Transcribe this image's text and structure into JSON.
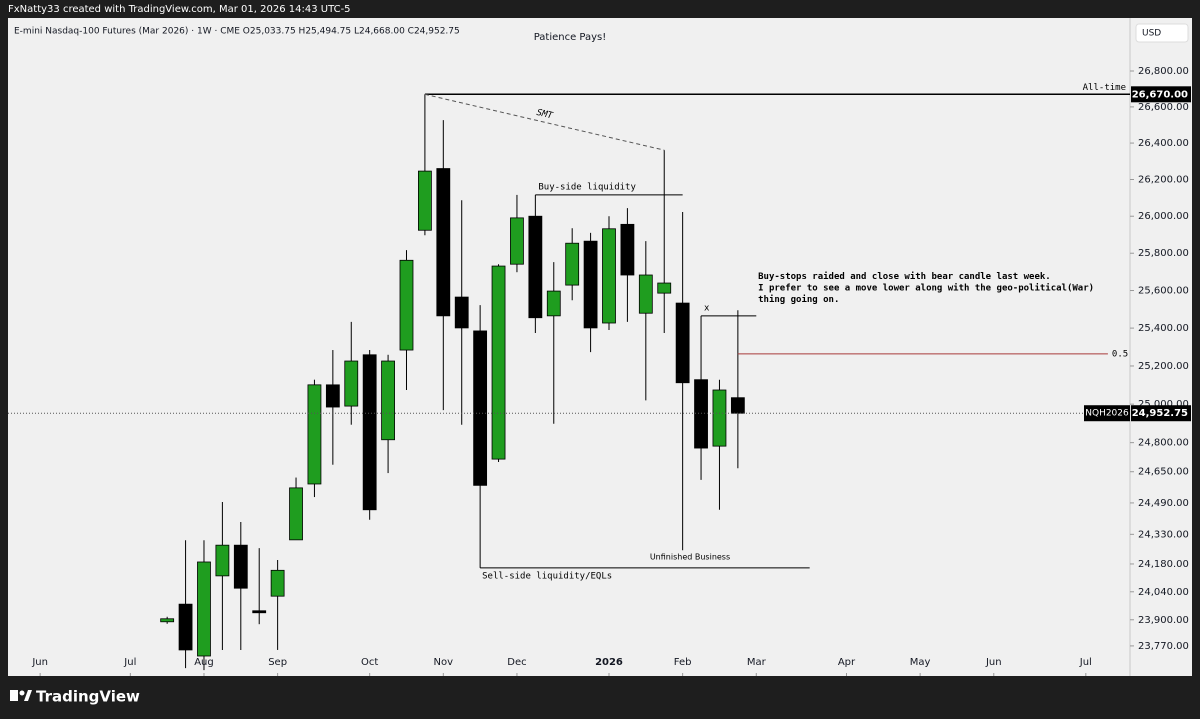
{
  "header": {
    "author_line": "FxNatty33 created with TradingView.com, Mar 01, 2026 14:43 UTC-5",
    "brand": "TradingView"
  },
  "chart_data": {
    "type": "candlestick",
    "title": "Patience Pays!",
    "symbol_line": "E-mini Nasdaq-100 Futures (Mar 2026) · 1W · CME  O25,033.75  H25,494.75  L24,668.00  C24,952.75",
    "currency": "USD",
    "log_scale": true,
    "up_color": "#1f9d1f",
    "down_color": "#000000",
    "candles": {
      "open": [
        23890,
        23978,
        23720,
        24120,
        24275,
        23945,
        24018,
        24302,
        24587,
        25101,
        24990,
        25259,
        24815,
        25284,
        25924,
        26260,
        25565,
        25385,
        24715,
        25741,
        26000,
        25465,
        25629,
        25865,
        25427,
        25956,
        25479,
        25586,
        25533,
        25128,
        24782,
        25033.75
      ],
      "high": [
        23915,
        24300,
        24300,
        24495,
        24393,
        24260,
        24200,
        24620,
        25128,
        25284,
        25433,
        25284,
        25259,
        25817,
        26670,
        26527,
        26087,
        25522,
        25741,
        26116,
        26116,
        25752,
        25935,
        25910,
        26000,
        26044,
        25865,
        26361,
        26023,
        25465,
        25128,
        25494.75
      ],
      "low": [
        23880,
        23660,
        23650,
        23750,
        23750,
        23878,
        23750,
        24505,
        24520,
        24686,
        24893,
        24404,
        24643,
        25074,
        25897,
        24969,
        24893,
        24160,
        24700,
        25698,
        25374,
        24898,
        25548,
        25273,
        25390,
        25433,
        25020,
        25374,
        24249,
        24608,
        24455,
        24668
      ],
      "close": [
        23905,
        23750,
        24190,
        24275,
        24058,
        23935,
        24148,
        24567,
        25101,
        24985,
        25226,
        24455,
        25226,
        25762,
        26246,
        25465,
        25401,
        24580,
        25731,
        25991,
        25455,
        25597,
        25854,
        25401,
        25932,
        25683,
        25683,
        25640,
        25112,
        24772,
        25074,
        24952.75
      ]
    },
    "xlim": [
      -9.08,
      52.3
    ],
    "xticks": [
      {
        "value": -6.9,
        "label": "Jun"
      },
      {
        "value": -2.0,
        "label": "Jul"
      },
      {
        "value": 2.0,
        "label": "Aug"
      },
      {
        "value": 6.0,
        "label": "Sep"
      },
      {
        "value": 11.0,
        "label": "Oct"
      },
      {
        "value": 15.0,
        "label": "Nov"
      },
      {
        "value": 19.0,
        "label": "Dec"
      },
      {
        "value": 24.0,
        "label": "2026"
      },
      {
        "value": 28.0,
        "label": "Feb"
      },
      {
        "value": 32.0,
        "label": "Mar"
      },
      {
        "value": 36.9,
        "label": "Apr"
      },
      {
        "value": 40.9,
        "label": "May"
      },
      {
        "value": 44.9,
        "label": "Jun"
      },
      {
        "value": 49.9,
        "label": "Jul"
      }
    ],
    "ylim": [
      23636,
      26974
    ],
    "yticks": [
      {
        "value": 26800,
        "label": "26,800.00"
      },
      {
        "value": 26600,
        "label": "26,600.00"
      },
      {
        "value": 26400,
        "label": "26,400.00"
      },
      {
        "value": 26200,
        "label": "26,200.00"
      },
      {
        "value": 26000,
        "label": "26,000.00"
      },
      {
        "value": 25800,
        "label": "25,800.00"
      },
      {
        "value": 25600,
        "label": "25,600.00"
      },
      {
        "value": 25400,
        "label": "25,400.00"
      },
      {
        "value": 25200,
        "label": "25,200.00"
      },
      {
        "value": 25000,
        "label": "25,000.00"
      },
      {
        "value": 24800,
        "label": "24,800.00"
      },
      {
        "value": 24650,
        "label": "24,650.00"
      },
      {
        "value": 24490,
        "label": "24,490.00"
      },
      {
        "value": 24330,
        "label": "24,330.00"
      },
      {
        "value": 24180,
        "label": "24,180.00"
      },
      {
        "value": 24040,
        "label": "24,040.00"
      },
      {
        "value": 23900,
        "label": "23,900.00"
      },
      {
        "value": 23770,
        "label": "23,770.00"
      }
    ],
    "last_price": {
      "symbol": "NQH2026",
      "value": 24952.75,
      "label": "24,952.75"
    },
    "levels": [
      {
        "text": "All-time",
        "price": 26670,
        "label": "26,670.00",
        "x": [
          14,
          52.3
        ],
        "color": "#000000"
      },
      {
        "text": "Buy-side liquidity",
        "price": 26116,
        "x": [
          20,
          28
        ],
        "color": "#000000"
      },
      {
        "text": "Sell-side liquidity/EQLs",
        "price": 24160,
        "x": [
          17,
          34.9
        ],
        "color": "#000000"
      },
      {
        "text": "x",
        "price": 25465,
        "x": [
          29,
          32
        ],
        "color": "#000000"
      },
      {
        "text": "0.5",
        "price": 25264,
        "x": [
          31,
          51.1
        ],
        "color": "#a83a3a"
      }
    ],
    "trend": {
      "text": "SMT",
      "from": [
        14,
        26670
      ],
      "to": [
        27,
        26361
      ]
    },
    "notes": [
      {
        "text": "Unfinished Business",
        "x": 28.4,
        "price": 24215
      },
      {
        "lines": [
          "Buy-stops raided and close with bear candle last week.",
          "I prefer to see a move lower along with the geo-political(War)",
          "thing  going on."
        ],
        "x": 32.1,
        "price": 25674
      }
    ]
  }
}
